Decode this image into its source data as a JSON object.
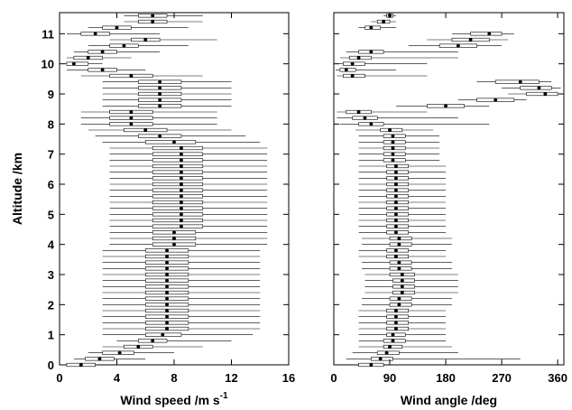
{
  "chart_data": [
    {
      "type": "box",
      "orientation": "horizontal",
      "xlabel": "Wind speed /m s",
      "xlabel_superscript": "-1",
      "ylabel": "Altitude /km",
      "xlim": [
        0,
        16
      ],
      "ylim": [
        0,
        11.7
      ],
      "xticks": [
        0,
        4,
        8,
        12,
        16
      ],
      "yticks": [
        0,
        1,
        2,
        3,
        4,
        5,
        6,
        7,
        8,
        9,
        10,
        11
      ],
      "xtick_labels": [
        "0",
        "4",
        "8",
        "12",
        "16"
      ],
      "ytick_labels": [
        "0",
        "1",
        "2",
        "3",
        "4",
        "5",
        "6",
        "7",
        "8",
        "9",
        "10",
        "11"
      ],
      "altitude_levels_km": [
        0.0,
        0.2,
        0.4,
        0.6,
        0.8,
        1.0,
        1.2,
        1.4,
        1.6,
        1.8,
        2.0,
        2.2,
        2.4,
        2.6,
        2.8,
        3.0,
        3.2,
        3.4,
        3.6,
        3.8,
        4.0,
        4.2,
        4.4,
        4.6,
        4.8,
        5.0,
        5.2,
        5.4,
        5.6,
        5.8,
        6.0,
        6.2,
        6.4,
        6.6,
        6.8,
        7.0,
        7.2,
        7.4,
        7.6,
        7.8,
        8.0,
        8.2,
        8.4,
        8.6,
        8.8,
        9.0,
        9.2,
        9.4,
        9.6,
        9.8,
        10.0,
        10.2,
        10.4,
        10.6,
        10.8,
        11.0,
        11.2,
        11.4,
        11.6
      ],
      "series": [
        {
          "median": [
            1.5,
            2.8,
            4.2,
            5.5,
            6.5,
            7.2,
            7.5,
            7.5,
            7.5,
            7.5,
            7.5,
            7.5,
            7.5,
            7.5,
            7.5,
            7.5,
            7.5,
            7.5,
            7.5,
            7.5,
            8.0,
            8.0,
            8.0,
            8.5,
            8.5,
            8.5,
            8.5,
            8.5,
            8.5,
            8.5,
            8.5,
            8.5,
            8.5,
            8.5,
            8.5,
            8.5,
            8.5,
            8.0,
            7.0,
            6.0,
            5.0,
            5.0,
            5.0,
            7.0,
            7.0,
            7.0,
            7.0,
            7.0,
            5.0,
            3.0,
            1.0,
            2.0,
            3.0,
            4.5,
            6.0,
            2.5,
            4.0,
            6.5,
            6.5
          ],
          "q1": [
            0.5,
            1.8,
            3.0,
            4.5,
            5.5,
            6.0,
            6.0,
            6.0,
            6.0,
            6.0,
            6.0,
            6.0,
            6.0,
            6.0,
            6.0,
            6.0,
            6.0,
            6.0,
            6.0,
            6.0,
            6.5,
            6.5,
            6.5,
            6.5,
            6.5,
            6.5,
            6.5,
            6.5,
            6.5,
            6.5,
            6.5,
            6.5,
            6.5,
            6.5,
            6.5,
            6.5,
            6.5,
            6.0,
            5.5,
            4.5,
            3.5,
            3.5,
            3.5,
            5.5,
            5.5,
            5.5,
            5.5,
            5.5,
            3.5,
            2.0,
            0.5,
            1.0,
            2.0,
            3.5,
            5.0,
            1.5,
            3.0,
            5.5,
            5.5
          ],
          "q3": [
            2.5,
            3.8,
            5.2,
            6.5,
            7.5,
            8.5,
            9.0,
            9.0,
            9.0,
            9.0,
            9.0,
            9.0,
            9.0,
            9.0,
            9.0,
            9.0,
            9.0,
            9.0,
            9.0,
            9.0,
            9.5,
            9.5,
            9.5,
            10.0,
            10.0,
            10.0,
            10.0,
            10.0,
            10.0,
            10.0,
            10.0,
            10.0,
            10.0,
            10.0,
            10.0,
            10.0,
            10.0,
            9.5,
            8.5,
            7.5,
            6.5,
            6.5,
            6.5,
            8.5,
            8.5,
            8.5,
            8.5,
            8.5,
            6.5,
            4.0,
            2.0,
            3.0,
            4.0,
            5.5,
            7.0,
            3.5,
            5.0,
            7.5,
            7.5
          ],
          "min": [
            0.2,
            1.0,
            2.0,
            3.0,
            4.0,
            3.0,
            3.0,
            3.0,
            3.0,
            3.0,
            3.0,
            3.0,
            3.0,
            3.0,
            3.0,
            3.0,
            3.0,
            3.0,
            3.0,
            3.0,
            3.5,
            3.5,
            3.5,
            3.5,
            3.5,
            3.5,
            3.5,
            3.5,
            3.5,
            3.5,
            3.5,
            3.5,
            3.5,
            3.5,
            3.5,
            3.5,
            3.5,
            3.0,
            2.5,
            2.0,
            1.5,
            1.5,
            1.5,
            3.0,
            3.0,
            3.0,
            3.0,
            3.0,
            1.5,
            0.5,
            0.2,
            0.5,
            1.0,
            2.0,
            3.5,
            0.5,
            2.0,
            4.5,
            4.5
          ],
          "max": [
            4.0,
            6.0,
            8.0,
            10.0,
            12.0,
            13.5,
            14.0,
            14.0,
            14.0,
            14.0,
            14.0,
            14.0,
            14.0,
            14.0,
            14.0,
            14.0,
            14.0,
            14.0,
            14.0,
            14.0,
            14.5,
            14.5,
            14.5,
            14.5,
            14.5,
            14.5,
            14.5,
            14.5,
            14.5,
            14.5,
            14.5,
            14.5,
            14.5,
            14.5,
            14.5,
            14.5,
            14.5,
            14.0,
            13.0,
            12.0,
            11.0,
            11.0,
            11.0,
            12.0,
            12.0,
            12.0,
            12.0,
            12.0,
            10.0,
            6.0,
            3.0,
            5.0,
            7.0,
            9.0,
            11.0,
            7.0,
            9.0,
            10.0,
            10.0
          ]
        }
      ]
    },
    {
      "type": "box",
      "orientation": "horizontal",
      "xlabel": "Wind angle /deg",
      "ylabel": "",
      "xlim": [
        0,
        370
      ],
      "ylim": [
        0,
        11.7
      ],
      "xticks": [
        0,
        90,
        180,
        270,
        360
      ],
      "yticks": [
        0,
        1,
        2,
        3,
        4,
        5,
        6,
        7,
        8,
        9,
        10,
        11
      ],
      "xtick_labels": [
        "0",
        "90",
        "180",
        "270",
        "360"
      ],
      "altitude_levels_km": [
        0.0,
        0.2,
        0.4,
        0.6,
        0.8,
        1.0,
        1.2,
        1.4,
        1.6,
        1.8,
        2.0,
        2.2,
        2.4,
        2.6,
        2.8,
        3.0,
        3.2,
        3.4,
        3.6,
        3.8,
        4.0,
        4.2,
        4.4,
        4.6,
        4.8,
        5.0,
        5.2,
        5.4,
        5.6,
        5.8,
        6.0,
        6.2,
        6.4,
        6.6,
        6.8,
        7.0,
        7.2,
        7.4,
        7.6,
        7.8,
        8.0,
        8.2,
        8.4,
        8.6,
        8.8,
        9.0,
        9.2,
        9.4,
        9.6,
        9.8,
        10.0,
        10.2,
        10.4,
        10.6,
        10.8,
        11.0,
        11.2,
        11.4,
        11.6
      ],
      "series": [
        {
          "median": [
            60,
            75,
            85,
            90,
            95,
            95,
            100,
            100,
            100,
            100,
            105,
            105,
            110,
            110,
            110,
            110,
            105,
            105,
            100,
            100,
            105,
            105,
            100,
            100,
            100,
            100,
            100,
            100,
            100,
            100,
            100,
            100,
            100,
            100,
            95,
            95,
            95,
            95,
            95,
            90,
            60,
            50,
            40,
            180,
            260,
            340,
            330,
            300,
            30,
            20,
            30,
            40,
            60,
            200,
            220,
            250,
            60,
            80,
            90
          ],
          "q1": [
            40,
            60,
            70,
            80,
            80,
            85,
            85,
            85,
            85,
            85,
            90,
            90,
            95,
            95,
            95,
            90,
            90,
            90,
            85,
            85,
            90,
            90,
            85,
            85,
            85,
            85,
            85,
            85,
            85,
            85,
            85,
            85,
            85,
            85,
            80,
            80,
            80,
            80,
            80,
            75,
            40,
            30,
            20,
            150,
            230,
            310,
            300,
            260,
            15,
            10,
            15,
            25,
            40,
            170,
            190,
            220,
            50,
            70,
            85
          ],
          "q3": [
            80,
            95,
            105,
            110,
            115,
            115,
            120,
            120,
            120,
            120,
            125,
            125,
            130,
            130,
            130,
            130,
            125,
            125,
            120,
            120,
            125,
            125,
            120,
            120,
            120,
            120,
            120,
            120,
            120,
            120,
            120,
            120,
            120,
            120,
            115,
            115,
            115,
            115,
            115,
            110,
            80,
            70,
            60,
            210,
            290,
            360,
            350,
            330,
            50,
            35,
            50,
            60,
            80,
            230,
            250,
            270,
            75,
            90,
            95
          ],
          "min": [
            10,
            20,
            30,
            40,
            40,
            40,
            40,
            40,
            40,
            40,
            45,
            45,
            50,
            50,
            50,
            50,
            45,
            45,
            40,
            40,
            45,
            45,
            40,
            40,
            40,
            40,
            40,
            40,
            40,
            40,
            40,
            40,
            40,
            40,
            40,
            40,
            40,
            40,
            40,
            35,
            10,
            5,
            5,
            100,
            200,
            280,
            270,
            230,
            5,
            3,
            5,
            10,
            20,
            120,
            150,
            190,
            40,
            60,
            80
          ],
          "max": [
            340,
            300,
            200,
            190,
            180,
            180,
            180,
            180,
            180,
            180,
            190,
            190,
            200,
            200,
            200,
            200,
            190,
            190,
            180,
            180,
            190,
            190,
            180,
            180,
            180,
            180,
            180,
            180,
            180,
            180,
            180,
            180,
            180,
            180,
            170,
            170,
            170,
            170,
            170,
            160,
            250,
            200,
            150,
            250,
            310,
            365,
            365,
            350,
            150,
            100,
            150,
            200,
            200,
            270,
            280,
            290,
            100,
            100,
            100
          ]
        }
      ]
    }
  ]
}
